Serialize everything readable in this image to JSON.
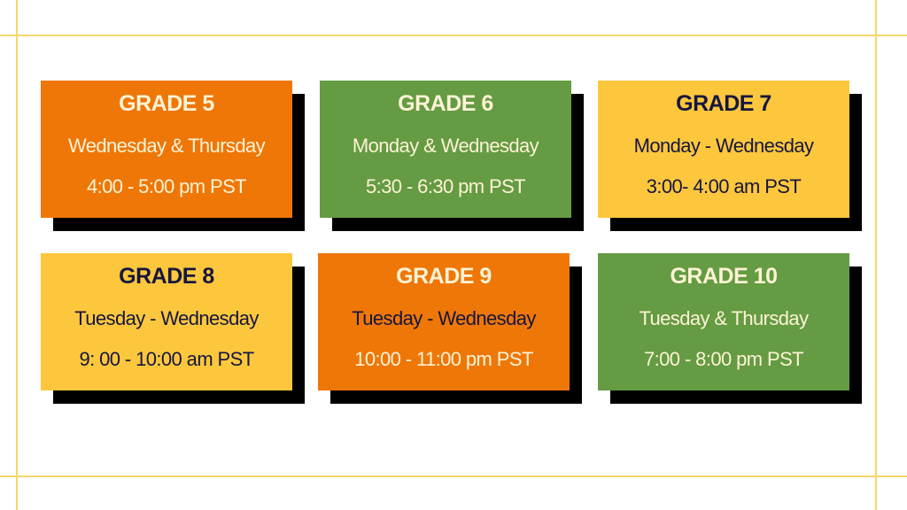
{
  "colors": {
    "orange": "#ee7708",
    "green": "#659b42",
    "yellow": "#fcc73c",
    "cream": "#fdf3d6",
    "navy": "#16163f",
    "line": "#f6d76a"
  },
  "cards": [
    {
      "grade": "GRADE 5",
      "days": "Wednesday & Thursday",
      "time": "4:00 - 5:00 pm PST",
      "color": "orange"
    },
    {
      "grade": "GRADE 6",
      "days": "Monday & Wednesday",
      "time": "5:30 - 6:30 pm PST",
      "color": "green"
    },
    {
      "grade": "GRADE 7",
      "days": "Monday - Wednesday",
      "time": "3:00- 4:00 am PST",
      "color": "yellow"
    },
    {
      "grade": "GRADE 8",
      "days": "Tuesday - Wednesday",
      "time": "9: 00 - 10:00  am PST",
      "color": "yellow"
    },
    {
      "grade": "GRADE 9",
      "days": "Tuesday - Wednesday",
      "time": "10:00 - 11:00 pm PST",
      "color": "orange"
    },
    {
      "grade": "GRADE 10",
      "days": "Tuesday & Thursday",
      "time": "7:00 - 8:00 pm PST",
      "color": "green"
    }
  ]
}
